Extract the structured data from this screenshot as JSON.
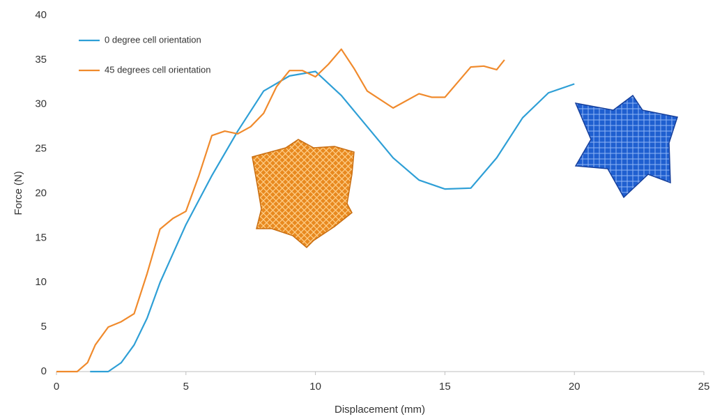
{
  "chart_data": {
    "type": "line",
    "x_label": "Displacement (mm)",
    "y_label": "Force (N)",
    "xlim": [
      0,
      25
    ],
    "xticks": [
      0,
      5,
      10,
      15,
      20,
      25
    ],
    "ylim": [
      0,
      40
    ],
    "yticks": [
      0,
      5,
      10,
      15,
      20,
      25,
      30,
      35,
      40
    ],
    "grid": false,
    "legend": "upper left",
    "series": [
      {
        "name": "0 degree cell orientation",
        "color": "#2e9fd6",
        "x": [
          1.3,
          2,
          2.5,
          3,
          3.5,
          4,
          5,
          6,
          7,
          8,
          9,
          10,
          11,
          12,
          13,
          14,
          15,
          16,
          17,
          18,
          19,
          20
        ],
        "values": [
          0,
          0,
          1,
          3,
          6,
          10,
          16.5,
          22,
          27,
          31.5,
          33.2,
          33.7,
          31,
          27.5,
          24,
          21.5,
          20.5,
          20.6,
          24,
          28.5,
          31.3,
          32.3
        ]
      },
      {
        "name": "45 degrees cell orientation",
        "color": "#f08a2c",
        "x": [
          0,
          0.8,
          1.2,
          1.5,
          2,
          2.5,
          3,
          3.5,
          4,
          4.5,
          5,
          5.5,
          6,
          6.5,
          7,
          7.5,
          8,
          8.5,
          9,
          9.5,
          10,
          10.5,
          11,
          11.5,
          12,
          13,
          14,
          14.5,
          15,
          15.5,
          16,
          16.5,
          17,
          17.3
        ],
        "values": [
          0,
          0,
          1,
          3,
          5,
          5.6,
          6.5,
          11,
          16,
          17.2,
          18,
          22,
          26.5,
          27,
          26.7,
          27.5,
          29,
          32,
          33.8,
          33.8,
          33.1,
          34.5,
          36.2,
          34,
          31.5,
          29.6,
          31.2,
          30.8,
          30.8,
          32.5,
          34.2,
          34.3,
          33.9,
          35
        ]
      }
    ]
  }
}
